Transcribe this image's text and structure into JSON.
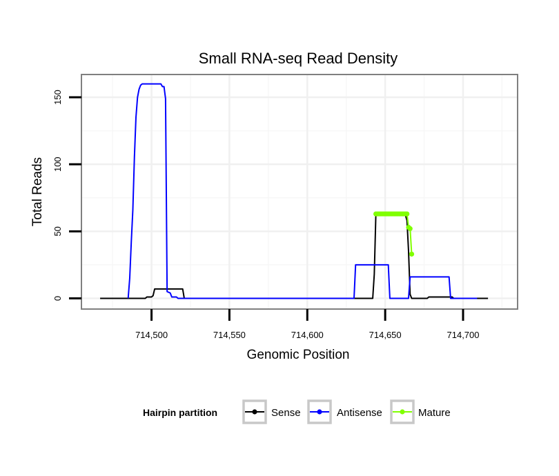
{
  "chart_data": {
    "type": "line",
    "title": "Small RNA-seq Read Density",
    "xlabel": "Genomic Position",
    "ylabel": "Total Reads",
    "xlim": [
      714455,
      714735
    ],
    "ylim": [
      -8,
      167
    ],
    "x_ticks": [
      714500,
      714550,
      714600,
      714650,
      714700
    ],
    "x_tick_labels": [
      "714,500",
      "714,550",
      "714,600",
      "714,650",
      "714,700"
    ],
    "y_ticks": [
      0,
      50,
      100,
      150
    ],
    "y_tick_labels": [
      "0",
      "50",
      "100",
      "150"
    ],
    "legend": {
      "title": "Hairpin partition",
      "placement": "bottom",
      "entries": [
        {
          "name": "Sense",
          "color": "#000000"
        },
        {
          "name": "Antisense",
          "color": "#0000ff"
        },
        {
          "name": "Mature",
          "color": "#80ff00"
        }
      ]
    },
    "series": [
      {
        "name": "Sense",
        "color": "#000000",
        "markers": false,
        "points": [
          [
            714467,
            0
          ],
          [
            714496,
            0
          ],
          [
            714497,
            1
          ],
          [
            714500,
            1
          ],
          [
            714501,
            2
          ],
          [
            714502,
            7
          ],
          [
            714520,
            7
          ],
          [
            714521,
            0
          ],
          [
            714642,
            0
          ],
          [
            714643,
            18
          ],
          [
            714644,
            62
          ],
          [
            714663,
            62
          ],
          [
            714664,
            58
          ],
          [
            714665,
            35
          ],
          [
            714666,
            3
          ],
          [
            714667,
            0
          ],
          [
            714677,
            0
          ],
          [
            714678,
            1
          ],
          [
            714693,
            1
          ],
          [
            714694,
            0
          ],
          [
            714716,
            0
          ]
        ]
      },
      {
        "name": "Antisense",
        "color": "#0000ff",
        "markers": false,
        "points": [
          [
            714485,
            0
          ],
          [
            714486,
            15
          ],
          [
            714487,
            42
          ],
          [
            714488,
            66
          ],
          [
            714489,
            105
          ],
          [
            714490,
            135
          ],
          [
            714491,
            150
          ],
          [
            714492,
            156
          ],
          [
            714493,
            159
          ],
          [
            714494,
            160
          ],
          [
            714506,
            160
          ],
          [
            714507,
            158
          ],
          [
            714508,
            158
          ],
          [
            714509,
            149
          ],
          [
            714510,
            5
          ],
          [
            714512,
            4
          ],
          [
            714513,
            1
          ],
          [
            714516,
            1
          ],
          [
            714517,
            0
          ],
          [
            714630,
            0
          ],
          [
            714631,
            25
          ],
          [
            714652,
            25
          ],
          [
            714653,
            0
          ],
          [
            714665,
            0
          ],
          [
            714666,
            16
          ],
          [
            714691,
            16
          ],
          [
            714692,
            0
          ],
          [
            714709,
            0
          ]
        ]
      },
      {
        "name": "Mature",
        "color": "#80ff00",
        "markers": true,
        "points": [
          [
            714644,
            63
          ],
          [
            714645,
            63
          ],
          [
            714646,
            63
          ],
          [
            714647,
            63
          ],
          [
            714648,
            63
          ],
          [
            714649,
            63
          ],
          [
            714650,
            63
          ],
          [
            714651,
            63
          ],
          [
            714652,
            63
          ],
          [
            714653,
            63
          ],
          [
            714654,
            63
          ],
          [
            714655,
            63
          ],
          [
            714656,
            63
          ],
          [
            714657,
            63
          ],
          [
            714658,
            63
          ],
          [
            714659,
            63
          ],
          [
            714660,
            63
          ],
          [
            714661,
            63
          ],
          [
            714662,
            63
          ],
          [
            714663,
            63
          ],
          [
            714664,
            63
          ],
          [
            714665,
            53
          ],
          [
            714666,
            52
          ],
          [
            714667,
            33
          ]
        ]
      }
    ]
  }
}
